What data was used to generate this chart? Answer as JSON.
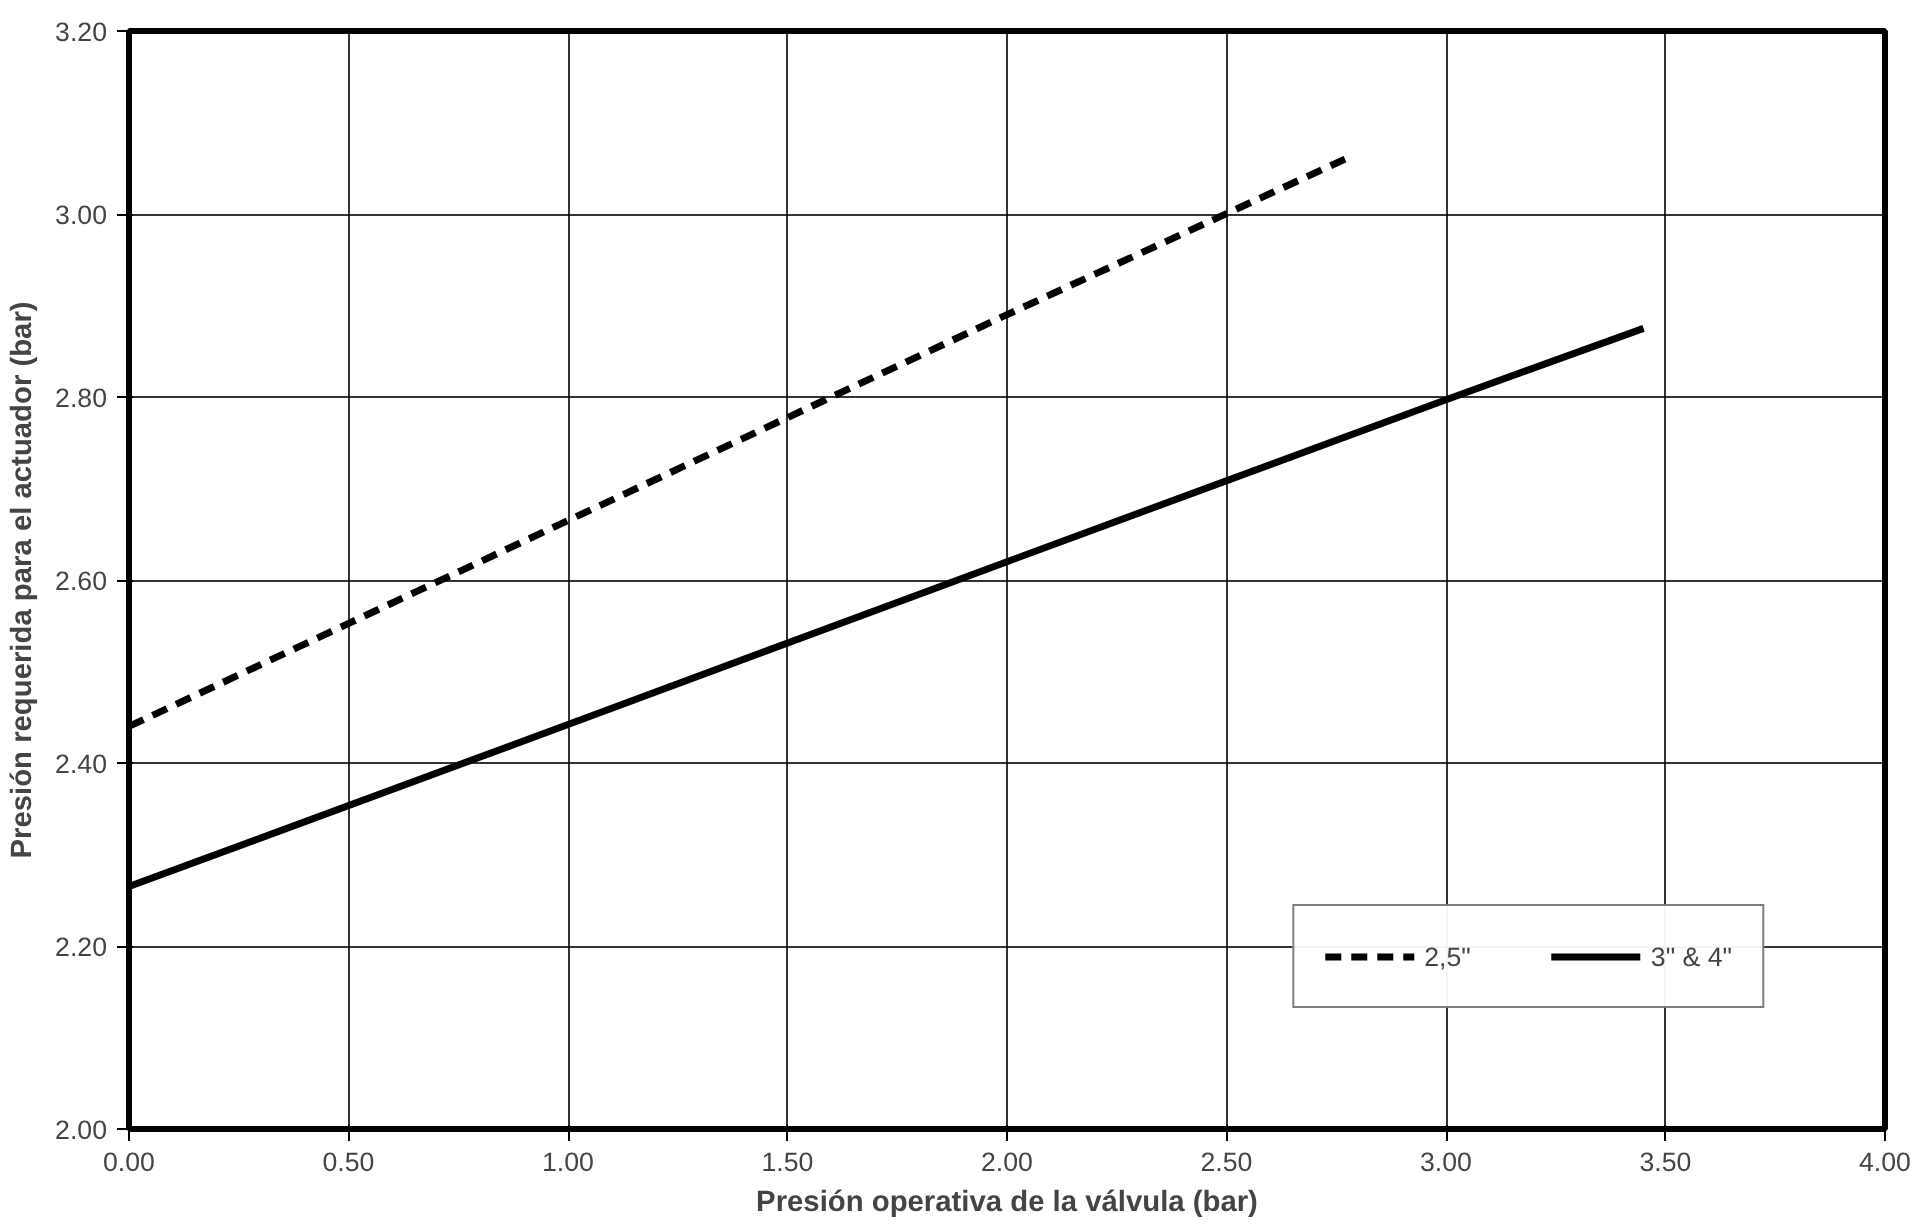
{
  "chart_data": {
    "type": "line",
    "xlabel": "Presión operativa de la válvula (bar)",
    "ylabel": "Presión requerida para el actuador (bar)",
    "series": [
      {
        "name": "2,5\"",
        "color": "#000000",
        "line_style": "dashed",
        "x": [
          0.0,
          1.0,
          2.0,
          2.77
        ],
        "values": [
          2.44,
          2.665,
          2.89,
          3.06
        ]
      },
      {
        "name": "3\" & 4\"",
        "color": "#000000",
        "line_style": "solid",
        "x": [
          0.0,
          1.0,
          2.0,
          3.0,
          3.45
        ],
        "values": [
          2.265,
          2.442,
          2.62,
          2.797,
          2.875
        ]
      }
    ],
    "xlim": [
      0,
      4
    ],
    "ylim": [
      2,
      3.2
    ],
    "xticks": [
      {
        "value": 0,
        "label": "0.00"
      },
      {
        "value": 0.5,
        "label": "0.50"
      },
      {
        "value": 1,
        "label": "1.00"
      },
      {
        "value": 1.5,
        "label": "1.50"
      },
      {
        "value": 2,
        "label": "2.00"
      },
      {
        "value": 2.5,
        "label": "2.50"
      },
      {
        "value": 3,
        "label": "3.00"
      },
      {
        "value": 3.5,
        "label": "3.50"
      },
      {
        "value": 4,
        "label": "4.00"
      }
    ],
    "yticks": [
      {
        "value": 2,
        "label": "2.00"
      },
      {
        "value": 2.2,
        "label": "2.20"
      },
      {
        "value": 2.4,
        "label": "2.40"
      },
      {
        "value": 2.6,
        "label": "2.60"
      },
      {
        "value": 2.8,
        "label": "2.80"
      },
      {
        "value": 3,
        "label": "3.00"
      },
      {
        "value": 3.2,
        "label": "3.20"
      }
    ],
    "grid": true,
    "legend": "bottom right",
    "marker": "none"
  }
}
